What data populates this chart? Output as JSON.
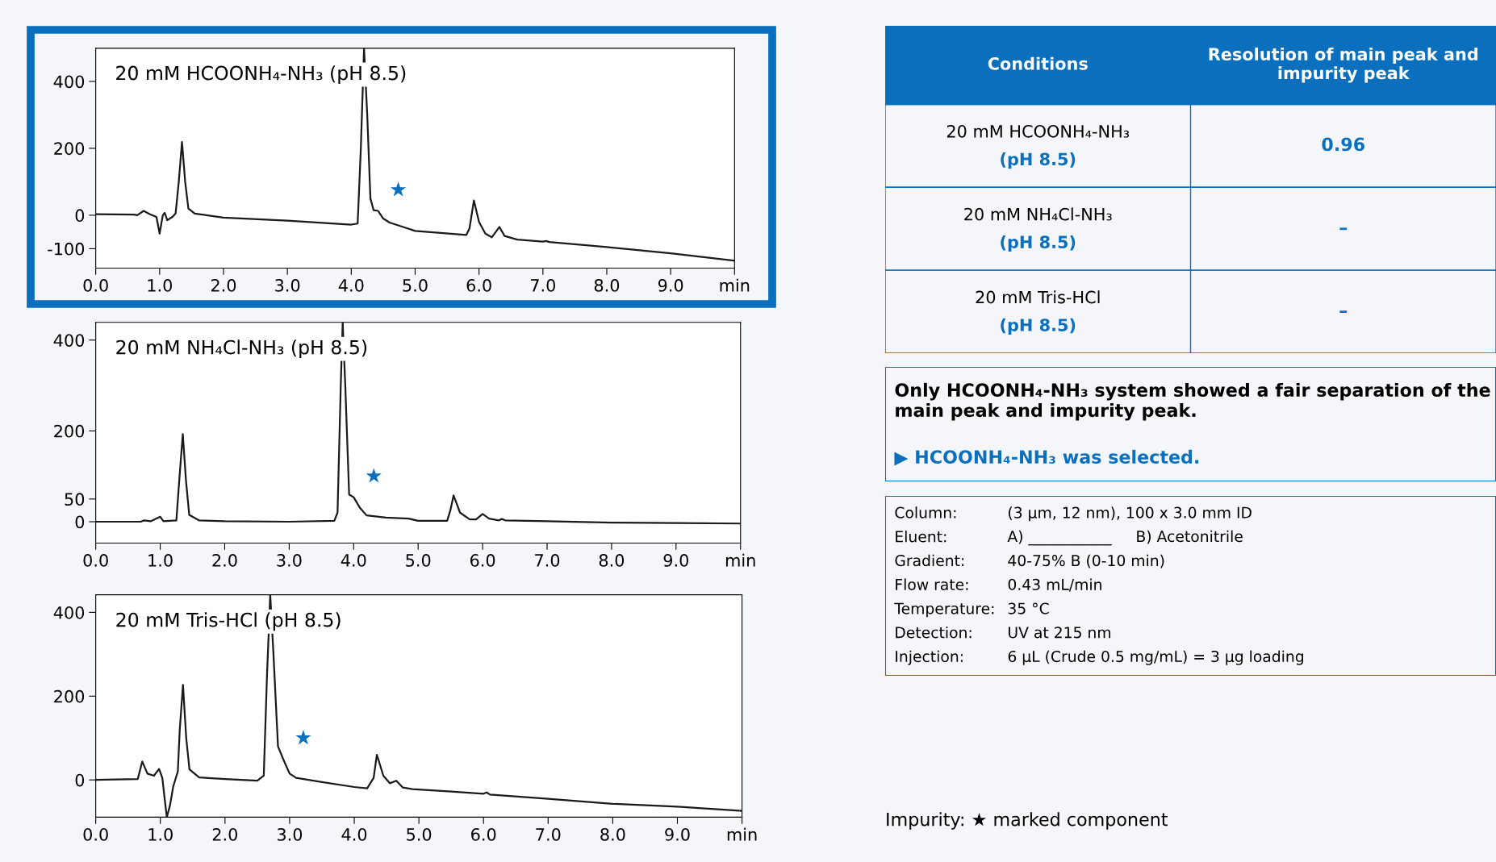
{
  "chart_data": [
    {
      "type": "line",
      "title": "20 mM HCOONH₄-NH₃ (pH 8.5)",
      "xlim": [
        0,
        10
      ],
      "ylim": [
        -158,
        499
      ],
      "xticks": [
        {
          "value": 0,
          "label": "0.0"
        },
        {
          "value": 1,
          "label": "1.0"
        },
        {
          "value": 2,
          "label": "2.0"
        },
        {
          "value": 3,
          "label": "3.0"
        },
        {
          "value": 4,
          "label": "4.0"
        },
        {
          "value": 5,
          "label": "5.0"
        },
        {
          "value": 6,
          "label": "6.0"
        },
        {
          "value": 7,
          "label": "7.0"
        },
        {
          "value": 8,
          "label": "8.0"
        },
        {
          "value": 9,
          "label": "9.0"
        },
        {
          "value": 10,
          "label": "min"
        }
      ],
      "yticks": [
        -100,
        0,
        200,
        400
      ],
      "grid": false,
      "legend": false,
      "marker": "none",
      "line_style": "solid",
      "series": [
        {
          "color": "#1a1a1a",
          "x": [
            0,
            0.6,
            0.65,
            0.75,
            0.85,
            0.95,
            1.0,
            1.05,
            1.08,
            1.12,
            1.2,
            1.25,
            1.3,
            1.35,
            1.4,
            1.45,
            1.55,
            2.0,
            3.0,
            4.0,
            4.1,
            4.15,
            4.2,
            4.25,
            4.3,
            4.35,
            4.42,
            4.5,
            4.6,
            5.0,
            5.8,
            5.85,
            5.92,
            6.0,
            6.1,
            6.2,
            6.32,
            6.4,
            6.6,
            7.0,
            7.05,
            7.1,
            8.0,
            9.0,
            10.0
          ],
          "values": [
            3,
            2,
            0,
            13,
            3,
            -5,
            -55,
            0,
            7,
            -15,
            -5,
            5,
            100,
            219,
            100,
            20,
            5,
            -7,
            -16,
            -28,
            -25,
            200,
            499,
            300,
            50,
            15,
            13,
            -10,
            -22,
            -47,
            -59,
            -40,
            44,
            -20,
            -55,
            -66,
            -35,
            -62,
            -73,
            -79,
            -77,
            -80,
            -95,
            -114,
            -136
          ]
        }
      ],
      "annotations": [
        {
          "text": "★",
          "x": 4.42,
          "y": 13
        }
      ]
    },
    {
      "type": "line",
      "title": "20 mM NH₄Cl-NH₃ (pH 8.5)",
      "xlim": [
        0,
        10
      ],
      "ylim": [
        -47,
        439
      ],
      "xticks": [
        {
          "value": 0,
          "label": "0.0"
        },
        {
          "value": 1,
          "label": "1.0"
        },
        {
          "value": 2,
          "label": "2.0"
        },
        {
          "value": 3,
          "label": "3.0"
        },
        {
          "value": 4,
          "label": "4.0"
        },
        {
          "value": 5,
          "label": "5.0"
        },
        {
          "value": 6,
          "label": "6.0"
        },
        {
          "value": 7,
          "label": "7.0"
        },
        {
          "value": 8,
          "label": "8.0"
        },
        {
          "value": 9,
          "label": "9.0"
        },
        {
          "value": 10,
          "label": "min"
        }
      ],
      "yticks": [
        0,
        50,
        200,
        400
      ],
      "grid": false,
      "legend": false,
      "marker": "none",
      "line_style": "solid",
      "series": [
        {
          "color": "#1a1a1a",
          "x": [
            0,
            0.7,
            0.75,
            0.85,
            1.0,
            1.05,
            1.25,
            1.3,
            1.35,
            1.4,
            1.45,
            1.6,
            2.0,
            3.0,
            3.7,
            3.75,
            3.8,
            3.83,
            3.87,
            3.93,
            4.0,
            4.1,
            4.2,
            4.5,
            4.85,
            5.0,
            5.45,
            5.5,
            5.55,
            5.65,
            5.8,
            5.9,
            6.0,
            6.1,
            6.25,
            6.3,
            6.35,
            7.0,
            8.0,
            9.0,
            10.0
          ],
          "values": [
            0,
            0,
            3,
            1,
            11,
            1,
            3,
            100,
            193,
            90,
            15,
            3,
            1,
            0,
            2,
            20,
            300,
            439,
            300,
            60,
            54,
            30,
            14,
            9,
            7,
            2,
            2,
            25,
            58,
            20,
            5,
            5,
            17,
            7,
            3,
            6,
            3,
            1,
            -2,
            -3,
            -4
          ]
        }
      ],
      "annotations": [
        {
          "text": "★",
          "x": 4.0,
          "y": 54
        }
      ]
    },
    {
      "type": "line",
      "title": "20 mM Tris-HCl (pH 8.5)",
      "xlim": [
        0,
        10
      ],
      "ylim": [
        -89,
        442
      ],
      "xticks": [
        {
          "value": 0,
          "label": "0.0"
        },
        {
          "value": 1,
          "label": "1.0"
        },
        {
          "value": 2,
          "label": "2.0"
        },
        {
          "value": 3,
          "label": "3.0"
        },
        {
          "value": 4,
          "label": "4.0"
        },
        {
          "value": 5,
          "label": "5.0"
        },
        {
          "value": 6,
          "label": "6.0"
        },
        {
          "value": 7,
          "label": "7.0"
        },
        {
          "value": 8,
          "label": "8.0"
        },
        {
          "value": 9,
          "label": "9.0"
        },
        {
          "value": 10,
          "label": "min"
        }
      ],
      "yticks": [
        0,
        200,
        400
      ],
      "grid": false,
      "legend": false,
      "marker": "none",
      "line_style": "solid",
      "series": [
        {
          "color": "#1a1a1a",
          "x": [
            0,
            0.65,
            0.72,
            0.8,
            0.9,
            0.98,
            1.03,
            1.07,
            1.1,
            1.15,
            1.2,
            1.27,
            1.3,
            1.35,
            1.4,
            1.45,
            1.6,
            2.0,
            2.5,
            2.6,
            2.65,
            2.7,
            2.75,
            2.82,
            2.9,
            3.0,
            3.1,
            3.5,
            4.0,
            4.2,
            4.3,
            4.35,
            4.45,
            4.55,
            4.65,
            4.75,
            4.9,
            5.5,
            6.0,
            6.05,
            6.1,
            7.0,
            8.0,
            9.0,
            10.0
          ],
          "values": [
            0,
            2,
            44,
            15,
            10,
            26,
            5,
            -50,
            -89,
            -60,
            -15,
            20,
            120,
            227,
            100,
            25,
            6,
            2,
            -2,
            10,
            250,
            442,
            300,
            80,
            50,
            15,
            5,
            -5,
            -17,
            -20,
            5,
            60,
            10,
            -8,
            -2,
            -18,
            -22,
            -28,
            -33,
            -30,
            -35,
            -45,
            -57,
            -64,
            -74
          ]
        }
      ],
      "annotations": [
        {
          "text": "★",
          "x": 2.9,
          "y": 50
        }
      ]
    },
    {
      "type": "other",
      "categories": [
        "Conditions",
        "Resolution of main peak and impurity peak"
      ],
      "y_categories": [
        "20 mM HCOONH₄-NH₃\n(pH 8.5)",
        "20 mM NH₄Cl-NH₃\n(pH 8.5)",
        "20 mM Tris-HCl\n(pH 8.5)"
      ],
      "cell_labels": [
        [
          "0.96"
        ],
        [
          "–"
        ],
        [
          "–"
        ]
      ]
    },
    {
      "type": "other",
      "annotations": [
        "Only HCOONH₄-NH₃ system showed a fair separation of the main peak and impurity peak.",
        "▶ HCOONH₄-NH₃ was selected."
      ]
    },
    {
      "type": "other",
      "y_categories": [
        "Column:",
        "Eluent:",
        "Gradient:",
        "Flow rate:",
        "Temperature:",
        "Detection:",
        "Injection:"
      ],
      "cell_labels": [
        [
          "(3 µm, 12 nm), 100 x 3.0 mm ID"
        ],
        [
          "A) ___________     B) Acetonitrile"
        ],
        [
          "40-75% B (0-10 min)"
        ],
        [
          "0.43 mL/min"
        ],
        [
          "35 °C"
        ],
        [
          "UV at 215 nm"
        ],
        [
          "6 µL (Crude 0.5 mg/mL) = 3 µg loading"
        ]
      ]
    },
    {
      "type": "other",
      "annotations": [
        "Impurity: ★ marked component"
      ]
    }
  ]
}
